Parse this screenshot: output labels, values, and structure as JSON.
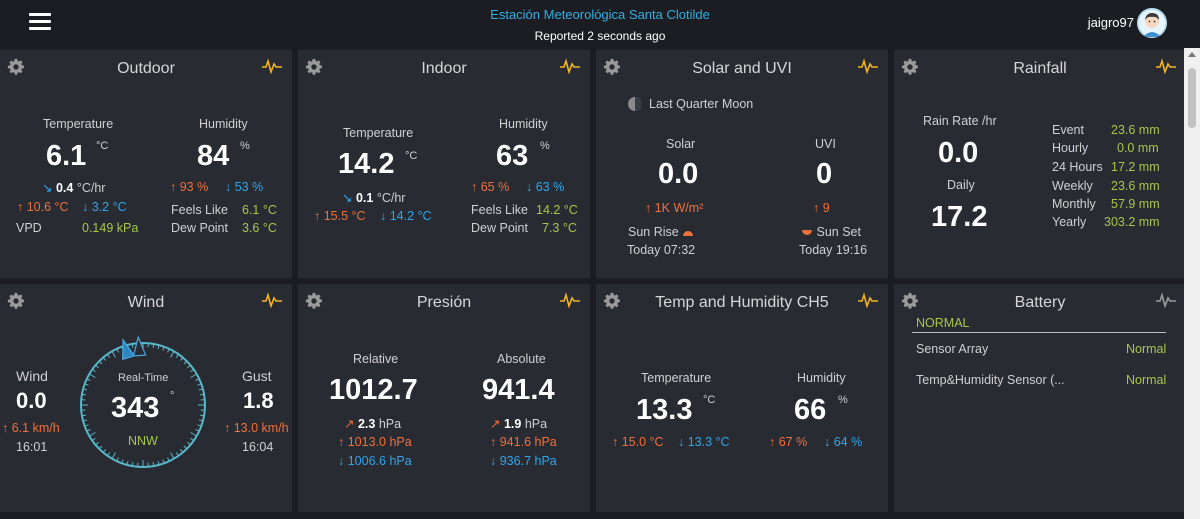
{
  "header": {
    "station_name": "Estación Meteorológica Santa Clotilde",
    "reported": "Reported 2 seconds ago",
    "username": "jaigro97"
  },
  "outdoor": {
    "title": "Outdoor",
    "temp_label": "Temperature",
    "temp_value": "6.1",
    "temp_unit": "°C",
    "temp_trend": "0.4",
    "temp_trend_unit": "°C/hr",
    "temp_high": "10.6 °C",
    "temp_low": "3.2 °C",
    "vpd_label": "VPD",
    "vpd_value": "0.149 kPa",
    "hum_label": "Humidity",
    "hum_value": "84",
    "hum_unit": "%",
    "hum_high": "93 %",
    "hum_low": "53 %",
    "feels_label": "Feels Like",
    "feels_value": "6.1 °C",
    "dew_label": "Dew Point",
    "dew_value": "3.6 °C"
  },
  "indoor": {
    "title": "Indoor",
    "temp_label": "Temperature",
    "temp_value": "14.2",
    "temp_unit": "°C",
    "temp_trend": "0.1",
    "temp_trend_unit": "°C/hr",
    "temp_high": "15.5 °C",
    "temp_low": "14.2 °C",
    "hum_label": "Humidity",
    "hum_value": "63",
    "hum_unit": "%",
    "hum_high": "65 %",
    "hum_low": "63 %",
    "feels_label": "Feels Like",
    "feels_value": "14.2 °C",
    "dew_label": "Dew Point",
    "dew_value": "7.3 °C"
  },
  "solar": {
    "title": "Solar and UVI",
    "moon_phase": "Last Quarter Moon",
    "solar_label": "Solar",
    "solar_value": "0.0",
    "solar_max": "1K W/m²",
    "uvi_label": "UVI",
    "uvi_value": "0",
    "uvi_max": "9",
    "sunrise_label": "Sun Rise",
    "sunrise_time": "Today 07:32",
    "sunset_label": "Sun Set",
    "sunset_time": "Today 19:16"
  },
  "rainfall": {
    "title": "Rainfall",
    "rate_label": "Rain Rate /hr",
    "rate_value": "0.0",
    "daily_label": "Daily",
    "daily_value": "17.2",
    "rows": [
      {
        "label": "Event",
        "value": "23.6 mm"
      },
      {
        "label": "Hourly",
        "value": "0.0 mm"
      },
      {
        "label": "24 Hours",
        "value": "17.2 mm"
      },
      {
        "label": "Weekly",
        "value": "23.6 mm"
      },
      {
        "label": "Monthly",
        "value": "57.9 mm"
      },
      {
        "label": "Yearly",
        "value": "303.2 mm"
      }
    ]
  },
  "wind": {
    "title": "Wind",
    "wind_label": "Wind",
    "wind_value": "0.0",
    "wind_max": "6.1 km/h",
    "wind_time": "16:01",
    "gust_label": "Gust",
    "gust_value": "1.8",
    "gust_max": "13.0 km/h",
    "gust_time": "16:04",
    "realtime_label": "Real-Time",
    "direction_deg": "343",
    "direction_deg_value": 343,
    "direction_unit": "°",
    "direction_text": "NNW"
  },
  "pressure": {
    "title": "Presión",
    "relative_label": "Relative",
    "relative_value": "1012.7",
    "relative_trend": "2.3",
    "relative_unit": "hPa",
    "relative_high": "1013.0 hPa",
    "relative_low": "1006.6 hPa",
    "absolute_label": "Absolute",
    "absolute_value": "941.4",
    "absolute_trend": "1.9",
    "absolute_unit": "hPa",
    "absolute_high": "941.6 hPa",
    "absolute_low": "936.7 hPa"
  },
  "ch5": {
    "title": "Temp and Humidity CH5",
    "temp_label": "Temperature",
    "temp_value": "13.3",
    "temp_unit": "°C",
    "temp_high": "15.0 °C",
    "temp_low": "13.3 °C",
    "hum_label": "Humidity",
    "hum_value": "66",
    "hum_unit": "%",
    "hum_high": "67 %",
    "hum_low": "64 %"
  },
  "battery": {
    "title": "Battery",
    "status": "NORMAL",
    "rows": [
      {
        "label": "Sensor Array",
        "value": "Normal"
      },
      {
        "label": "Temp&Humidity Sensor (...",
        "value": "Normal"
      }
    ]
  },
  "colors": {
    "accent_blue": "#33aee2",
    "high_orange": "#f0703a",
    "low_blue": "#2ea6ea",
    "value_green": "#a6c64a",
    "card_bg": "#292b33",
    "pulse_yellow": "#f2b322"
  }
}
